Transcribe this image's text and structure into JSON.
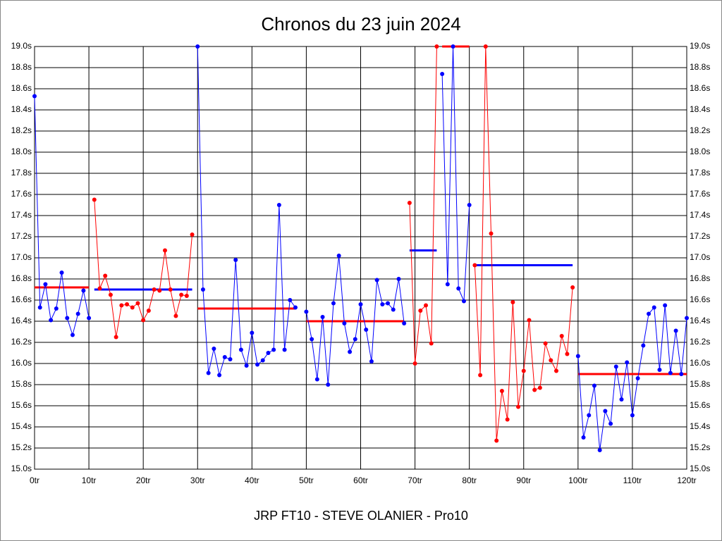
{
  "chart_data": {
    "type": "line",
    "title": "Chronos du 23 juin 2024",
    "xlabel": "JRP FT10 - STEVE OLANIER - Pro10",
    "xlim": [
      0,
      120
    ],
    "ylim": [
      15.0,
      19.0
    ],
    "grid": true,
    "xticks": [
      {
        "value": 0,
        "label": "0tr"
      },
      {
        "value": 10,
        "label": "10tr"
      },
      {
        "value": 20,
        "label": "20tr"
      },
      {
        "value": 30,
        "label": "30tr"
      },
      {
        "value": 40,
        "label": "40tr"
      },
      {
        "value": 50,
        "label": "50tr"
      },
      {
        "value": 60,
        "label": "60tr"
      },
      {
        "value": 70,
        "label": "70tr"
      },
      {
        "value": 80,
        "label": "80tr"
      },
      {
        "value": 90,
        "label": "90tr"
      },
      {
        "value": 100,
        "label": "100tr"
      },
      {
        "value": 110,
        "label": "110tr"
      },
      {
        "value": 120,
        "label": "120tr"
      }
    ],
    "yticks": [
      {
        "value": 15.0,
        "label": "15.0s"
      },
      {
        "value": 15.2,
        "label": "15.2s"
      },
      {
        "value": 15.4,
        "label": "15.4s"
      },
      {
        "value": 15.6,
        "label": "15.6s"
      },
      {
        "value": 15.8,
        "label": "15.8s"
      },
      {
        "value": 16.0,
        "label": "16.0s"
      },
      {
        "value": 16.2,
        "label": "16.2s"
      },
      {
        "value": 16.4,
        "label": "16.4s"
      },
      {
        "value": 16.6,
        "label": "16.6s"
      },
      {
        "value": 16.8,
        "label": "16.8s"
      },
      {
        "value": 17.0,
        "label": "17.0s"
      },
      {
        "value": 17.2,
        "label": "17.2s"
      },
      {
        "value": 17.4,
        "label": "17.4s"
      },
      {
        "value": 17.6,
        "label": "17.6s"
      },
      {
        "value": 17.8,
        "label": "17.8s"
      },
      {
        "value": 18.0,
        "label": "18.0s"
      },
      {
        "value": 18.2,
        "label": "18.2s"
      },
      {
        "value": 18.4,
        "label": "18.4s"
      },
      {
        "value": 18.6,
        "label": "18.6s"
      },
      {
        "value": 18.8,
        "label": "18.8s"
      },
      {
        "value": 19.0,
        "label": "19.0s"
      }
    ],
    "series": [
      {
        "color": "#0000ff",
        "x": [
          0,
          1,
          2,
          3,
          4,
          5,
          6,
          7,
          8,
          9,
          10
        ],
        "values": [
          18.53,
          16.53,
          16.75,
          16.41,
          16.52,
          16.86,
          16.43,
          16.27,
          16.47,
          16.69,
          16.43
        ]
      },
      {
        "color": "#ff0000",
        "x": [
          11,
          12,
          13,
          14,
          15,
          16,
          17,
          18,
          19,
          20,
          21,
          22,
          23,
          24,
          25,
          26,
          27,
          28,
          29
        ],
        "values": [
          17.55,
          16.71,
          16.83,
          16.65,
          16.25,
          16.55,
          16.56,
          16.53,
          16.57,
          16.41,
          16.5,
          16.7,
          16.69,
          17.07,
          16.7,
          16.45,
          16.65,
          16.64,
          17.22
        ]
      },
      {
        "color": "#0000ff",
        "x": [
          30,
          31,
          32,
          33,
          34,
          35,
          36,
          37,
          38,
          39,
          40,
          41,
          42,
          43,
          44,
          45,
          46,
          47,
          48
        ],
        "values": [
          19.0,
          16.7,
          15.91,
          16.14,
          15.89,
          16.06,
          16.04,
          16.98,
          16.13,
          15.98,
          16.29,
          15.99,
          16.03,
          16.1,
          16.13,
          17.5,
          16.13,
          16.6,
          16.53
        ]
      },
      {
        "color": "#0000ff",
        "x": [
          50,
          51,
          52,
          53,
          54,
          55,
          56,
          57,
          58,
          59,
          60,
          61,
          62,
          63,
          64,
          65,
          66,
          67,
          68
        ],
        "values": [
          16.49,
          16.23,
          15.85,
          16.44,
          15.8,
          16.57,
          17.02,
          16.38,
          16.11,
          16.23,
          16.56,
          16.32,
          16.02,
          16.79,
          16.56,
          16.57,
          16.51,
          16.8,
          16.38
        ]
      },
      {
        "color": "#ff0000",
        "x": [
          69,
          70,
          71,
          72,
          73,
          74
        ],
        "values": [
          17.52,
          16.0,
          16.5,
          16.55,
          16.19,
          19.0
        ]
      },
      {
        "color": "#0000ff",
        "x": [
          75,
          76,
          77,
          78,
          79,
          80
        ],
        "values": [
          18.74,
          16.75,
          19.0,
          16.71,
          16.59,
          17.5
        ]
      },
      {
        "color": "#ff0000",
        "x": [
          81,
          82,
          83,
          84,
          85,
          86,
          87,
          88,
          89,
          90,
          91,
          92,
          93,
          94,
          95,
          96,
          97,
          98,
          99
        ],
        "values": [
          16.93,
          15.89,
          19.0,
          17.23,
          15.27,
          15.74,
          15.47,
          16.58,
          15.59,
          15.93,
          16.41,
          15.75,
          15.77,
          16.19,
          16.03,
          15.93,
          16.26,
          16.09,
          16.72
        ]
      },
      {
        "color": "#0000ff",
        "x": [
          100,
          101,
          102,
          103,
          104,
          105,
          106,
          107,
          108,
          109,
          110,
          111,
          112,
          113,
          114,
          115,
          116,
          117,
          118,
          119,
          120
        ],
        "values": [
          16.07,
          15.3,
          15.51,
          15.79,
          15.18,
          15.55,
          15.43,
          15.97,
          15.66,
          16.01,
          15.51,
          15.86,
          16.17,
          16.47,
          16.53,
          15.94,
          16.55,
          15.91,
          16.31,
          15.9,
          16.43
        ]
      }
    ],
    "means": [
      {
        "color": "#ff0000",
        "x": [
          0,
          10
        ],
        "value": 16.72
      },
      {
        "color": "#0000ff",
        "x": [
          11,
          29
        ],
        "value": 16.7
      },
      {
        "color": "#ff0000",
        "x": [
          30,
          48
        ],
        "value": 16.52
      },
      {
        "color": "#ff0000",
        "x": [
          50,
          68
        ],
        "value": 16.4
      },
      {
        "color": "#0000ff",
        "x": [
          69,
          74
        ],
        "value": 17.07
      },
      {
        "color": "#ff0000",
        "x": [
          75,
          80
        ],
        "value": 19.0
      },
      {
        "color": "#0000ff",
        "x": [
          81,
          99
        ],
        "value": 16.93
      },
      {
        "color": "#ff0000",
        "x": [
          100,
          120
        ],
        "value": 15.9
      }
    ]
  }
}
